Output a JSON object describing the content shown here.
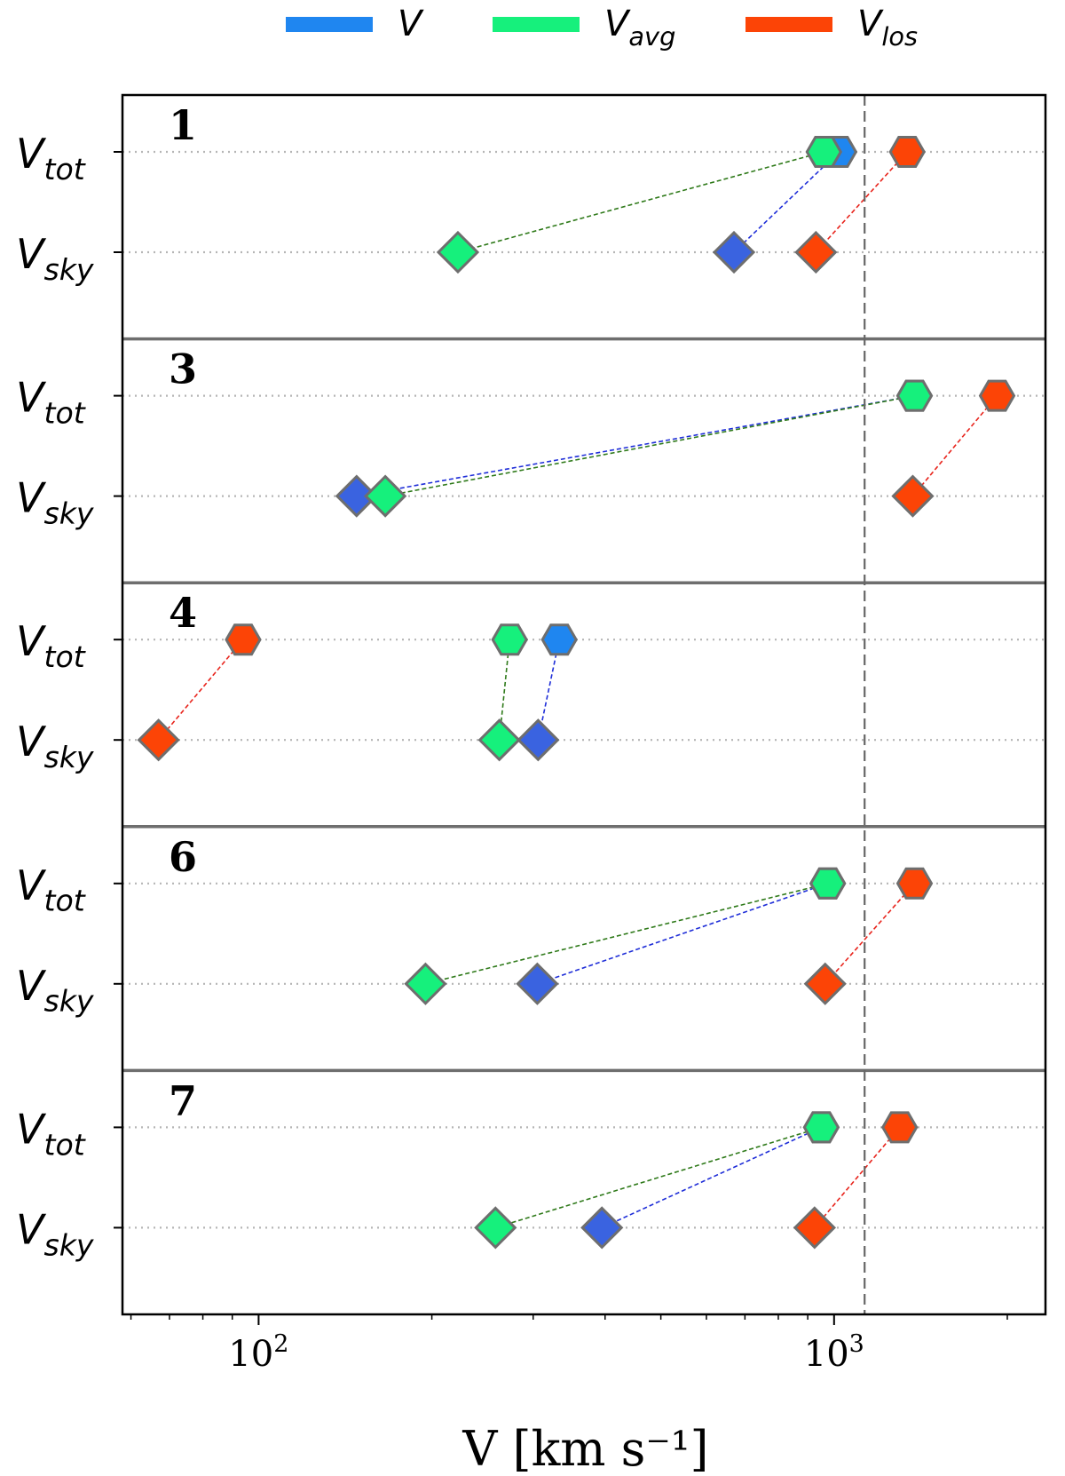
{
  "chart_data": {
    "type": "scatter",
    "xscale": "log",
    "xlim": [
      58,
      2330
    ],
    "xlabel": "V [km s⁻¹]",
    "xticks": [
      {
        "value": 100,
        "base": "10",
        "exp": "2"
      },
      {
        "value": 1000,
        "base": "10",
        "exp": "3"
      }
    ],
    "reference_line": {
      "x": 1130,
      "style": "dashed"
    },
    "legend": {
      "placement": "top-center",
      "entries": [
        {
          "key": "V",
          "base": "V",
          "sub": "",
          "color": "#1f86f0"
        },
        {
          "key": "V_avg",
          "base": "V",
          "sub": "avg",
          "color": "#16f07c"
        },
        {
          "key": "V_los",
          "base": "V",
          "sub": "los",
          "color": "#fc4406"
        }
      ]
    },
    "row_labels": [
      {
        "key": "V_tot",
        "base": "V",
        "sub": "tot",
        "marker": "hexagon"
      },
      {
        "key": "V_sky",
        "base": "V",
        "sub": "sky",
        "marker": "diamond"
      }
    ],
    "series_styles": {
      "V": {
        "color_tot": "#1f86f0",
        "color_sky": "#3a63e0",
        "link": "#1f2ed8"
      },
      "V_avg": {
        "color_tot": "#16f07c",
        "color_sky": "#16f07c",
        "link": "#2f7a1a"
      },
      "V_los": {
        "color_tot": "#fc4406",
        "color_sky": "#fc4406",
        "link": "#e8241c"
      }
    },
    "panels": [
      {
        "label": "1",
        "points": {
          "V": {
            "tot": 1020,
            "sky": 670
          },
          "V_avg": {
            "tot": 960,
            "sky": 222
          },
          "V_los": {
            "tot": 1340,
            "sky": 930
          }
        }
      },
      {
        "label": "3",
        "points": {
          "V": {
            "tot": 1380,
            "sky": 148
          },
          "V_avg": {
            "tot": 1380,
            "sky": 166
          },
          "V_los": {
            "tot": 1920,
            "sky": 1370
          }
        }
      },
      {
        "label": "4",
        "points": {
          "V": {
            "tot": 333,
            "sky": 306
          },
          "V_avg": {
            "tot": 273,
            "sky": 262
          },
          "V_los": {
            "tot": 94,
            "sky": 67
          }
        }
      },
      {
        "label": "6",
        "points": {
          "V": {
            "tot": 975,
            "sky": 305
          },
          "V_avg": {
            "tot": 975,
            "sky": 195
          },
          "V_los": {
            "tot": 1380,
            "sky": 965
          }
        }
      },
      {
        "label": "7",
        "points": {
          "V": {
            "tot": 950,
            "sky": 395
          },
          "V_avg": {
            "tot": 950,
            "sky": 258
          },
          "V_los": {
            "tot": 1300,
            "sky": 925
          }
        }
      }
    ]
  }
}
